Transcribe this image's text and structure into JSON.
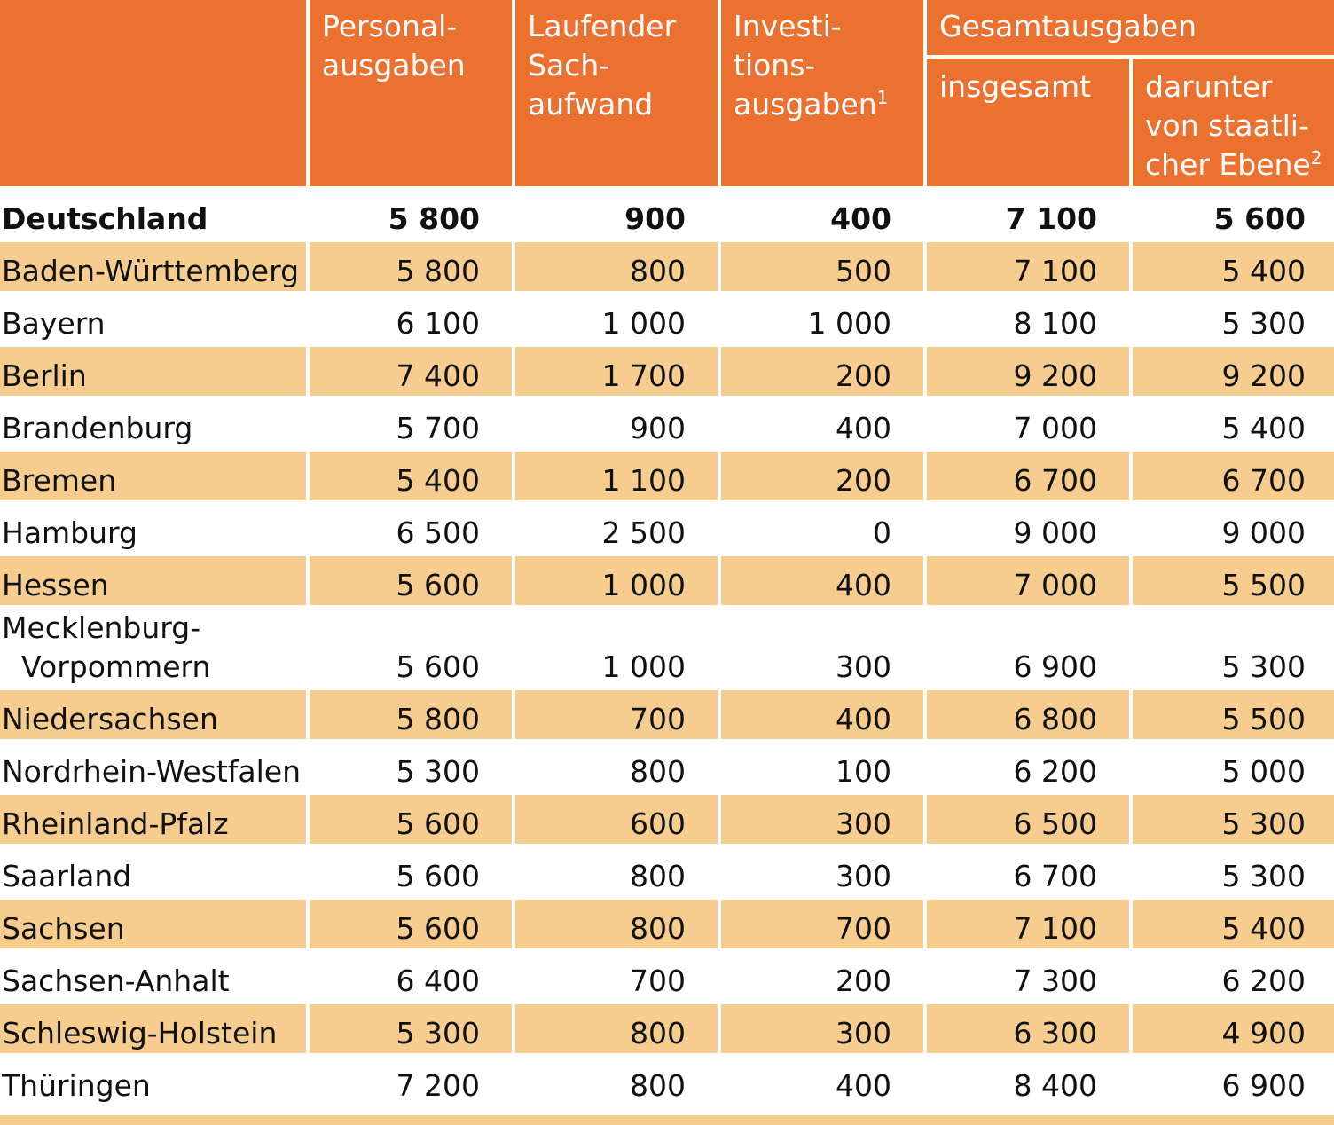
{
  "header": {
    "col1": [
      "Personal-",
      "ausgaben"
    ],
    "col2": [
      "Laufender",
      "Sach-",
      "aufwand"
    ],
    "col3": [
      "Investi-",
      "tions-",
      "ausgaben"
    ],
    "col3_sup": "1",
    "group": "Gesamtausgaben",
    "col4": [
      "insgesamt"
    ],
    "col5": [
      "darunter",
      "von staatli-",
      "cher Ebene"
    ],
    "col5_sup": "2"
  },
  "rows": [
    {
      "name": [
        "Deutschland"
      ],
      "v": [
        "5 800",
        "900",
        "400",
        "7 100",
        "5 600"
      ]
    },
    {
      "name": [
        "Baden-Württemberg"
      ],
      "v": [
        "5 800",
        "800",
        "500",
        "7 100",
        "5 400"
      ]
    },
    {
      "name": [
        "Bayern"
      ],
      "v": [
        "6 100",
        "1 000",
        "1 000",
        "8 100",
        "5 300"
      ]
    },
    {
      "name": [
        "Berlin"
      ],
      "v": [
        "7 400",
        "1 700",
        "200",
        "9 200",
        "9 200"
      ]
    },
    {
      "name": [
        "Brandenburg"
      ],
      "v": [
        "5 700",
        "900",
        "400",
        "7 000",
        "5 400"
      ]
    },
    {
      "name": [
        "Bremen"
      ],
      "v": [
        "5 400",
        "1 100",
        "200",
        "6 700",
        "6 700"
      ]
    },
    {
      "name": [
        "Hamburg"
      ],
      "v": [
        "6 500",
        "2 500",
        "0",
        "9 000",
        "9 000"
      ]
    },
    {
      "name": [
        "Hessen"
      ],
      "v": [
        "5 600",
        "1 000",
        "400",
        "7 000",
        "5 500"
      ]
    },
    {
      "name": [
        "Mecklenburg-",
        "Vorpommern"
      ],
      "v": [
        "5 600",
        "1 000",
        "300",
        "6 900",
        "5 300"
      ]
    },
    {
      "name": [
        "Niedersachsen"
      ],
      "v": [
        "5 800",
        "700",
        "400",
        "6 800",
        "5 500"
      ]
    },
    {
      "name": [
        "Nordrhein-Westfalen"
      ],
      "v": [
        "5 300",
        "800",
        "100",
        "6 200",
        "5 000"
      ]
    },
    {
      "name": [
        "Rheinland-Pfalz"
      ],
      "v": [
        "5 600",
        "600",
        "300",
        "6 500",
        "5 300"
      ]
    },
    {
      "name": [
        "Saarland"
      ],
      "v": [
        "5 600",
        "800",
        "300",
        "6 700",
        "5 300"
      ]
    },
    {
      "name": [
        "Sachsen"
      ],
      "v": [
        "5 600",
        "800",
        "700",
        "7 100",
        "5 400"
      ]
    },
    {
      "name": [
        "Sachsen-Anhalt"
      ],
      "v": [
        "6 400",
        "700",
        "200",
        "7 300",
        "6 200"
      ]
    },
    {
      "name": [
        "Schleswig-Holstein"
      ],
      "v": [
        "5 300",
        "800",
        "300",
        "6 300",
        "4 900"
      ]
    },
    {
      "name": [
        "Thüringen"
      ],
      "v": [
        "7 200",
        "800",
        "400",
        "8 400",
        "6 900"
      ]
    }
  ],
  "colors": {
    "header_bg": "#eb7131",
    "row_shade": "#f6cd8e",
    "header_text": "#ffffff"
  }
}
